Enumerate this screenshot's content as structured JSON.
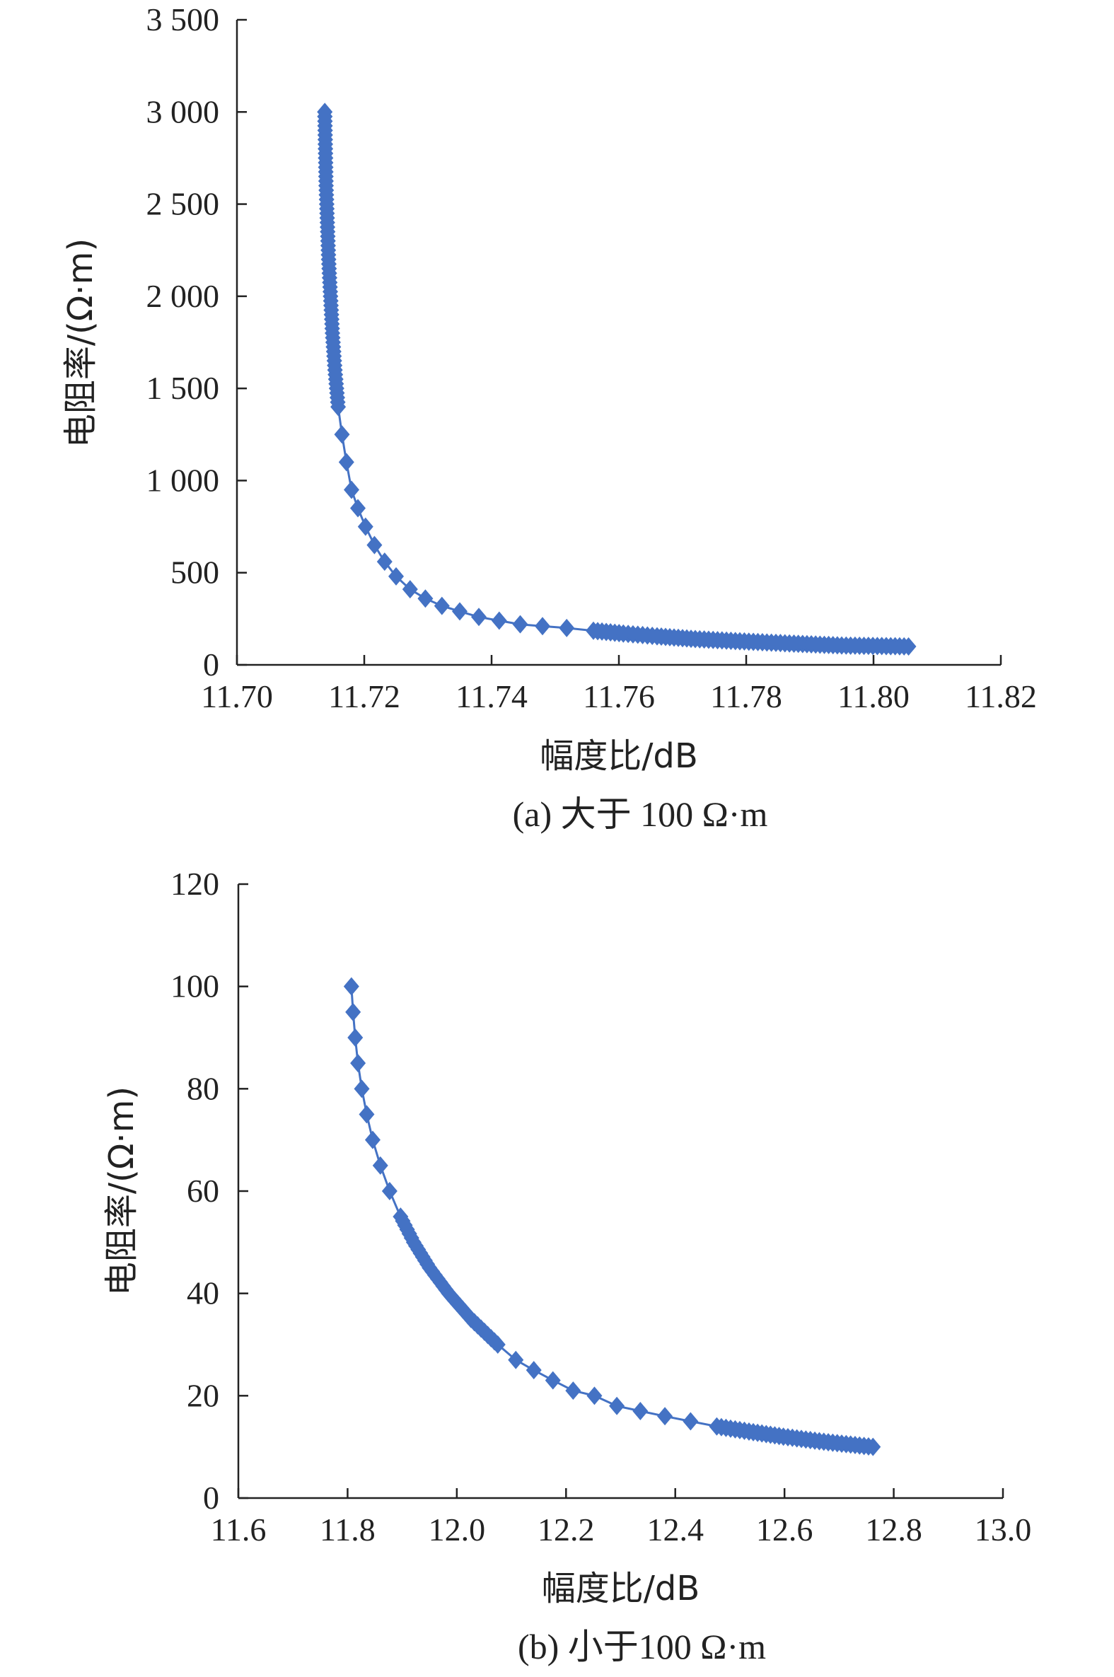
{
  "chart_data": [
    {
      "type": "scatter",
      "caption": "(a) 大于 100 Ω·m",
      "xlabel": "幅度比/dB",
      "ylabel": "电阻率/(Ω·m)",
      "xlim": [
        11.7,
        11.82
      ],
      "ylim": [
        0,
        3500
      ],
      "xticks": [
        "11.70",
        "11.72",
        "11.74",
        "11.76",
        "11.78",
        "11.80",
        "11.82"
      ],
      "yticks": [
        "0",
        "500",
        "1 000",
        "1 500",
        "2 000",
        "2 500",
        "3 000",
        "3 500"
      ],
      "series": [
        {
          "color": "#4472c4",
          "x": [
            11.7138,
            11.7139,
            11.714,
            11.7142,
            11.7144,
            11.7147,
            11.715,
            11.7154,
            11.7159,
            11.7165,
            11.7172,
            11.718,
            11.719,
            11.7202,
            11.7216,
            11.7232,
            11.725,
            11.7272,
            11.7296,
            11.7322,
            11.735,
            11.738,
            11.7412,
            11.7445,
            11.748,
            11.7518,
            11.756,
            11.7607,
            11.766,
            11.772,
            11.779,
            11.7875,
            11.795,
            11.8055
          ],
          "y": [
            3000,
            2800,
            2600,
            2400,
            2200,
            2000,
            1800,
            1600,
            1400,
            1250,
            1100,
            950,
            850,
            750,
            650,
            560,
            480,
            410,
            360,
            320,
            290,
            260,
            240,
            220,
            210,
            200,
            185,
            170,
            155,
            140,
            128,
            115,
            105,
            100
          ]
        }
      ]
    },
    {
      "type": "scatter",
      "caption": "(b) 小于100 Ω·m",
      "xlabel": "幅度比/dB",
      "ylabel": "电阻率/(Ω·m)",
      "xlim": [
        11.6,
        13.0
      ],
      "ylim": [
        0,
        120
      ],
      "xticks": [
        "11.6",
        "11.8",
        "12.0",
        "12.2",
        "12.4",
        "12.6",
        "12.8",
        "13.0"
      ],
      "yticks": [
        "0",
        "20",
        "40",
        "60",
        "80",
        "100",
        "120"
      ],
      "series": [
        {
          "color": "#4472c4",
          "x": [
            11.807,
            11.81,
            11.814,
            11.819,
            11.826,
            11.835,
            11.846,
            11.86,
            11.877,
            11.897,
            11.921,
            11.95,
            11.985,
            12.026,
            12.075,
            12.108,
            12.141,
            12.176,
            12.213,
            12.252,
            12.293,
            12.336,
            12.381,
            12.428,
            12.476,
            12.535,
            12.598,
            12.672,
            12.762
          ],
          "y": [
            100,
            95,
            90,
            85,
            80,
            75,
            70,
            65,
            60,
            55,
            50,
            45,
            40,
            35,
            30,
            27,
            25,
            23,
            21,
            20,
            18,
            17,
            16,
            15,
            14,
            13,
            12,
            11,
            10
          ]
        }
      ]
    }
  ]
}
